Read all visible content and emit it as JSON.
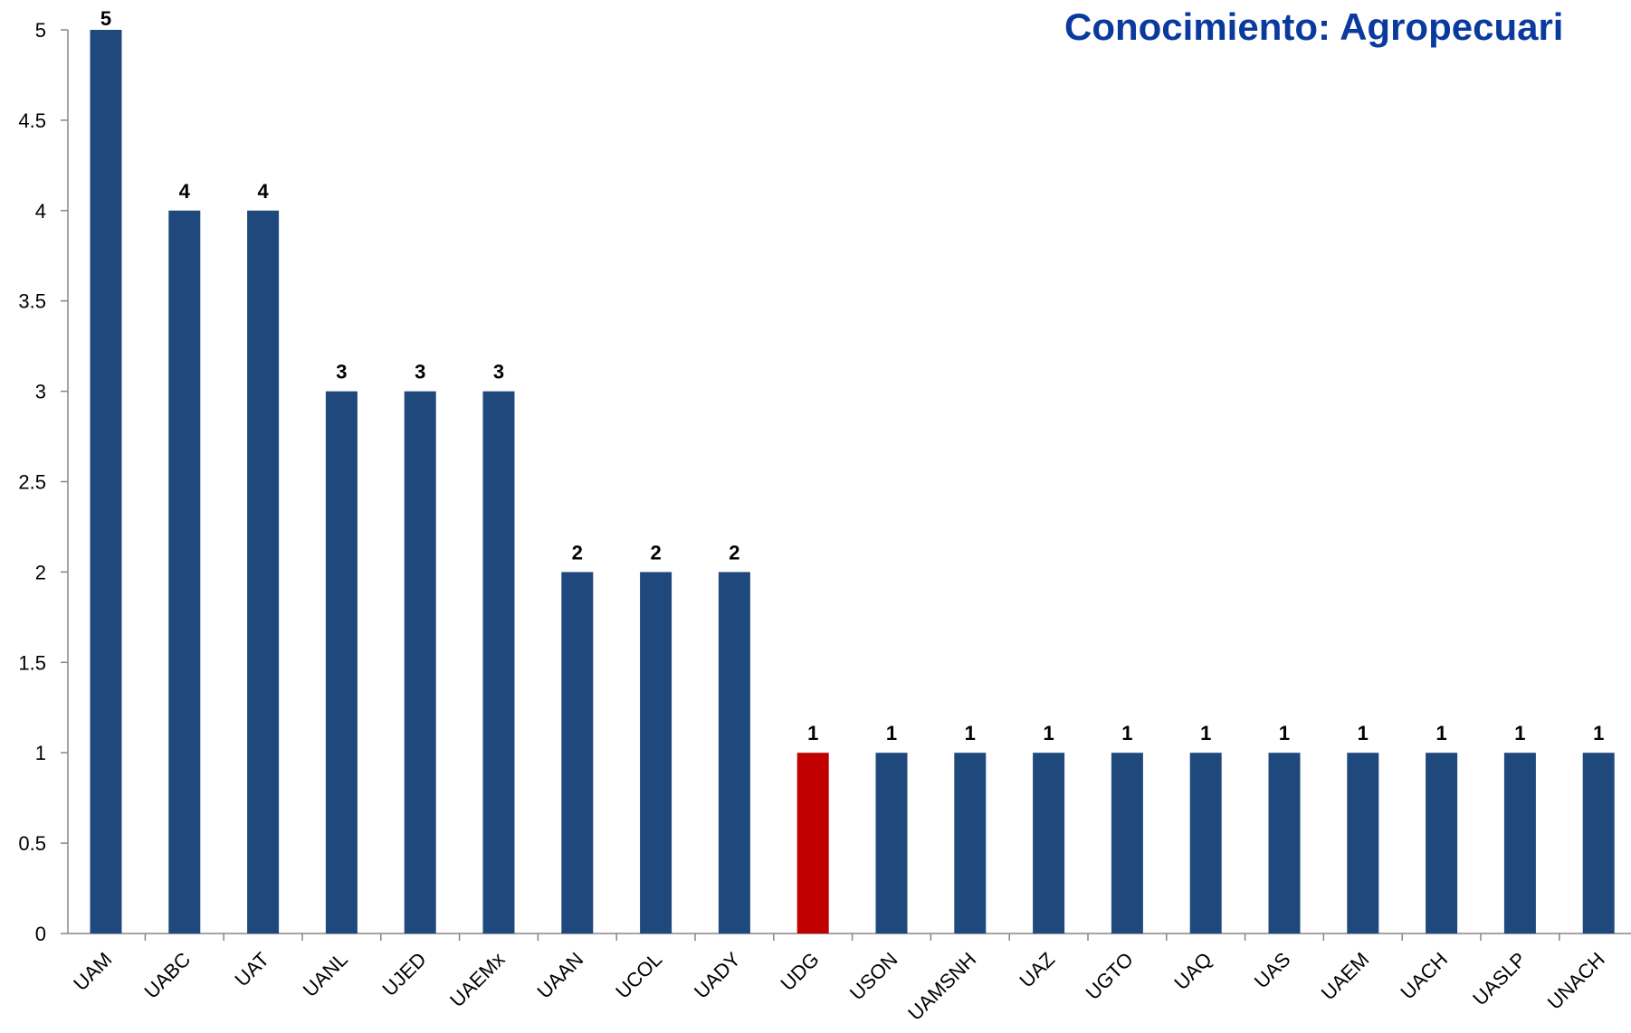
{
  "chart_data": {
    "type": "bar",
    "title": "Conocimiento: Agropecuari",
    "xlabel": "",
    "ylabel": "",
    "ylim": [
      0,
      5
    ],
    "yticks": [
      "0",
      "0.5",
      "1",
      "1.5",
      "2",
      "2.5",
      "3",
      "3.5",
      "4",
      "4.5",
      "5"
    ],
    "grid": false,
    "legend": "none",
    "categories": [
      "UAM",
      "UABC",
      "UAT",
      "UANL",
      "UJED",
      "UAEMx",
      "UAAN",
      "UCOL",
      "UADY",
      "UDG",
      "USON",
      "UAMSNH",
      "UAZ",
      "UGTO",
      "UAQ",
      "UAS",
      "UAEM",
      "UACH",
      "UASLP",
      "UNACH"
    ],
    "values": [
      5,
      4,
      4,
      3,
      3,
      3,
      2,
      2,
      2,
      1,
      1,
      1,
      1,
      1,
      1,
      1,
      1,
      1,
      1,
      1
    ],
    "bar_color": "#1f497d",
    "highlight_color": "#c00000",
    "highlight_category": "UDG",
    "title_color": "#0a3a9e"
  }
}
